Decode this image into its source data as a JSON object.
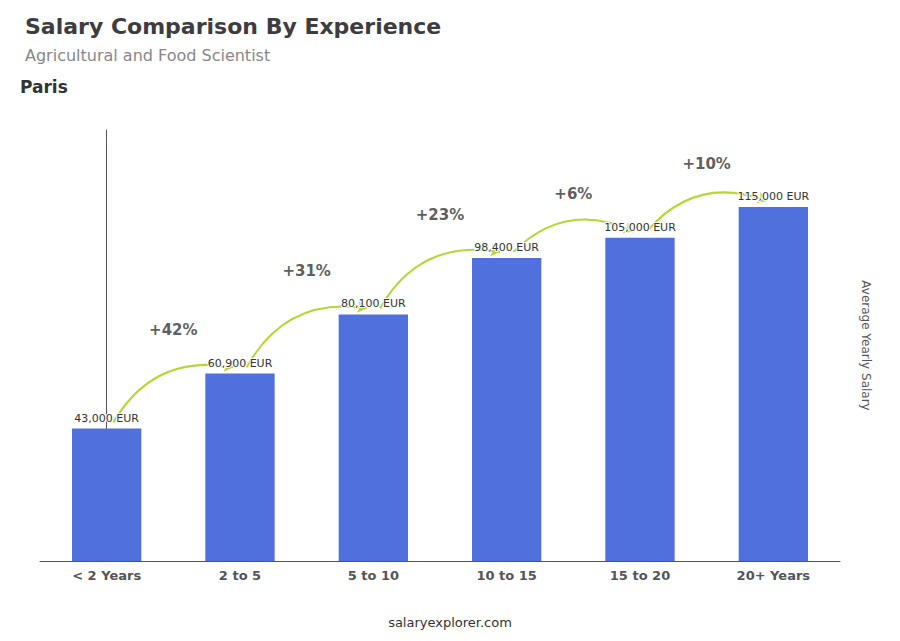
{
  "chart_data": {
    "type": "bar",
    "title": "Salary Comparison By Experience",
    "subtitle": "Agricultural and Food Scientist",
    "annotations": [
      "Paris",
      "salaryexplorer.com"
    ],
    "y_label": "Average Yearly Salary",
    "categories": [
      "< 2 Years",
      "2 to 5",
      "5 to 10",
      "10 to 15",
      "15 to 20",
      "20+ Years"
    ],
    "values": [
      43000,
      60900,
      80100,
      98400,
      105000,
      115000
    ],
    "value_labels": [
      "43,000 EUR",
      "60,900 EUR",
      "80,100 EUR",
      "98,400 EUR",
      "105,000 EUR",
      "115,000 EUR"
    ],
    "data_labels": true,
    "pct_changes": [
      null,
      42,
      31,
      23,
      6,
      10
    ],
    "pct_labels": [
      null,
      "+42%",
      "+31%",
      "+23%",
      "+6%",
      "+10%"
    ],
    "ylim": [
      0,
      140000
    ],
    "grid": false,
    "tick_labels": "x"
  }
}
